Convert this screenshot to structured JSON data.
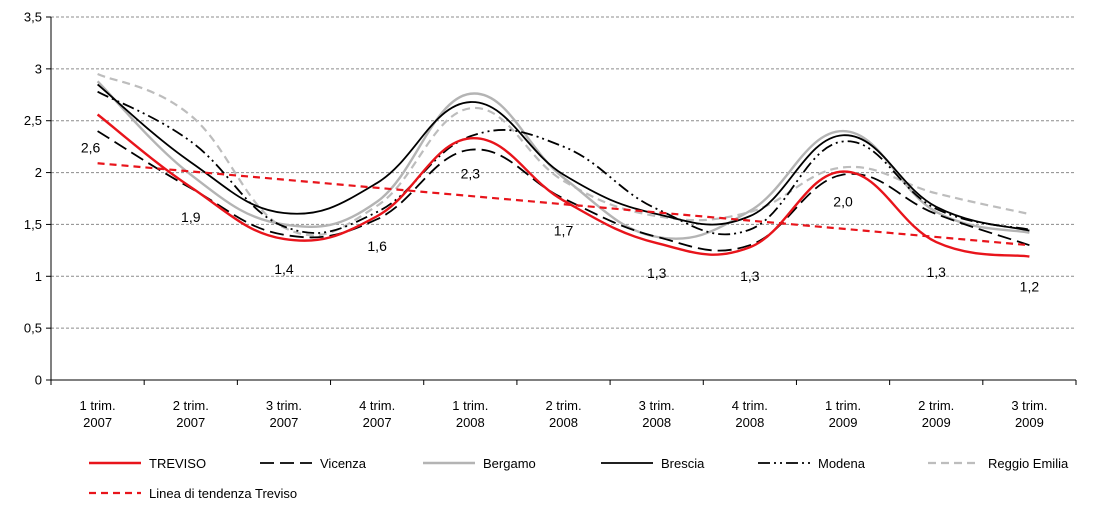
{
  "chart_data": {
    "type": "line",
    "categories": [
      [
        "1 trim.",
        "2007"
      ],
      [
        "2 trim.",
        "2007"
      ],
      [
        "3 trim.",
        "2007"
      ],
      [
        "4 trim.",
        "2007"
      ],
      [
        "1 trim.",
        "2008"
      ],
      [
        "2 trim.",
        "2008"
      ],
      [
        "3 trim.",
        "2008"
      ],
      [
        "4 trim.",
        "2008"
      ],
      [
        "1 trim.",
        "2009"
      ],
      [
        "2 trim.",
        "2009"
      ],
      [
        "3 trim.",
        "2009"
      ]
    ],
    "ylim": [
      0,
      3.5
    ],
    "yticks": [
      "0",
      "0,5",
      "1",
      "1,5",
      "2",
      "2,5",
      "3",
      "3,5"
    ],
    "ytick_values": [
      0,
      0.5,
      1,
      1.5,
      2,
      2.5,
      3,
      3.5
    ],
    "grid": true,
    "legend_position": "bottom",
    "series": [
      {
        "name": "TREVISO",
        "values": [
          2.56,
          1.86,
          1.36,
          1.58,
          2.33,
          1.73,
          1.32,
          1.28,
          2.01,
          1.33,
          1.19
        ],
        "color": "#e8141b",
        "dash": "",
        "width": 2.4
      },
      {
        "name": "Vicenza",
        "values": [
          2.4,
          1.85,
          1.4,
          1.55,
          2.22,
          1.75,
          1.38,
          1.3,
          1.98,
          1.6,
          1.3
        ],
        "color": "#000000",
        "dash": "14 6",
        "width": 1.8
      },
      {
        "name": "Bergamo",
        "values": [
          2.88,
          1.98,
          1.5,
          1.72,
          2.76,
          1.95,
          1.38,
          1.63,
          2.4,
          1.62,
          1.42
        ],
        "color": "#b4b4b4",
        "dash": "",
        "width": 2.4
      },
      {
        "name": "Brescia",
        "values": [
          2.85,
          2.1,
          1.61,
          1.9,
          2.68,
          1.98,
          1.6,
          1.58,
          2.36,
          1.67,
          1.44
        ],
        "color": "#000000",
        "dash": "",
        "width": 1.8
      },
      {
        "name": "Modena",
        "values": [
          2.78,
          2.3,
          1.48,
          1.62,
          2.35,
          2.25,
          1.65,
          1.45,
          2.3,
          1.65,
          1.45
        ],
        "color": "#000000",
        "dash": "12 4 2 4 2 4",
        "width": 1.8
      },
      {
        "name": "Reggio Emilia",
        "values": [
          2.95,
          2.55,
          1.47,
          1.68,
          2.62,
          1.92,
          1.58,
          1.62,
          2.05,
          1.8,
          1.6
        ],
        "color": "#bdbdbd",
        "dash": "8 5",
        "width": 2.2
      },
      {
        "name": "Linea di tendenza Treviso",
        "values": [
          2.09,
          2.02,
          1.94,
          1.86,
          1.78,
          1.7,
          1.62,
          1.54,
          1.46,
          1.38,
          1.3
        ],
        "color": "#e8141b",
        "dash": "7 5",
        "width": 2.2,
        "straight": true
      }
    ],
    "data_labels": [
      {
        "index": 0,
        "text": "2,6"
      },
      {
        "index": 1,
        "text": "1,9"
      },
      {
        "index": 2,
        "text": "1,4"
      },
      {
        "index": 3,
        "text": "1,6"
      },
      {
        "index": 4,
        "text": "2,3"
      },
      {
        "index": 5,
        "text": "1,7"
      },
      {
        "index": 6,
        "text": "1,3"
      },
      {
        "index": 7,
        "text": "1,3"
      },
      {
        "index": 8,
        "text": "2,0"
      },
      {
        "index": 9,
        "text": "1,3"
      },
      {
        "index": 10,
        "text": "1,2"
      }
    ]
  }
}
